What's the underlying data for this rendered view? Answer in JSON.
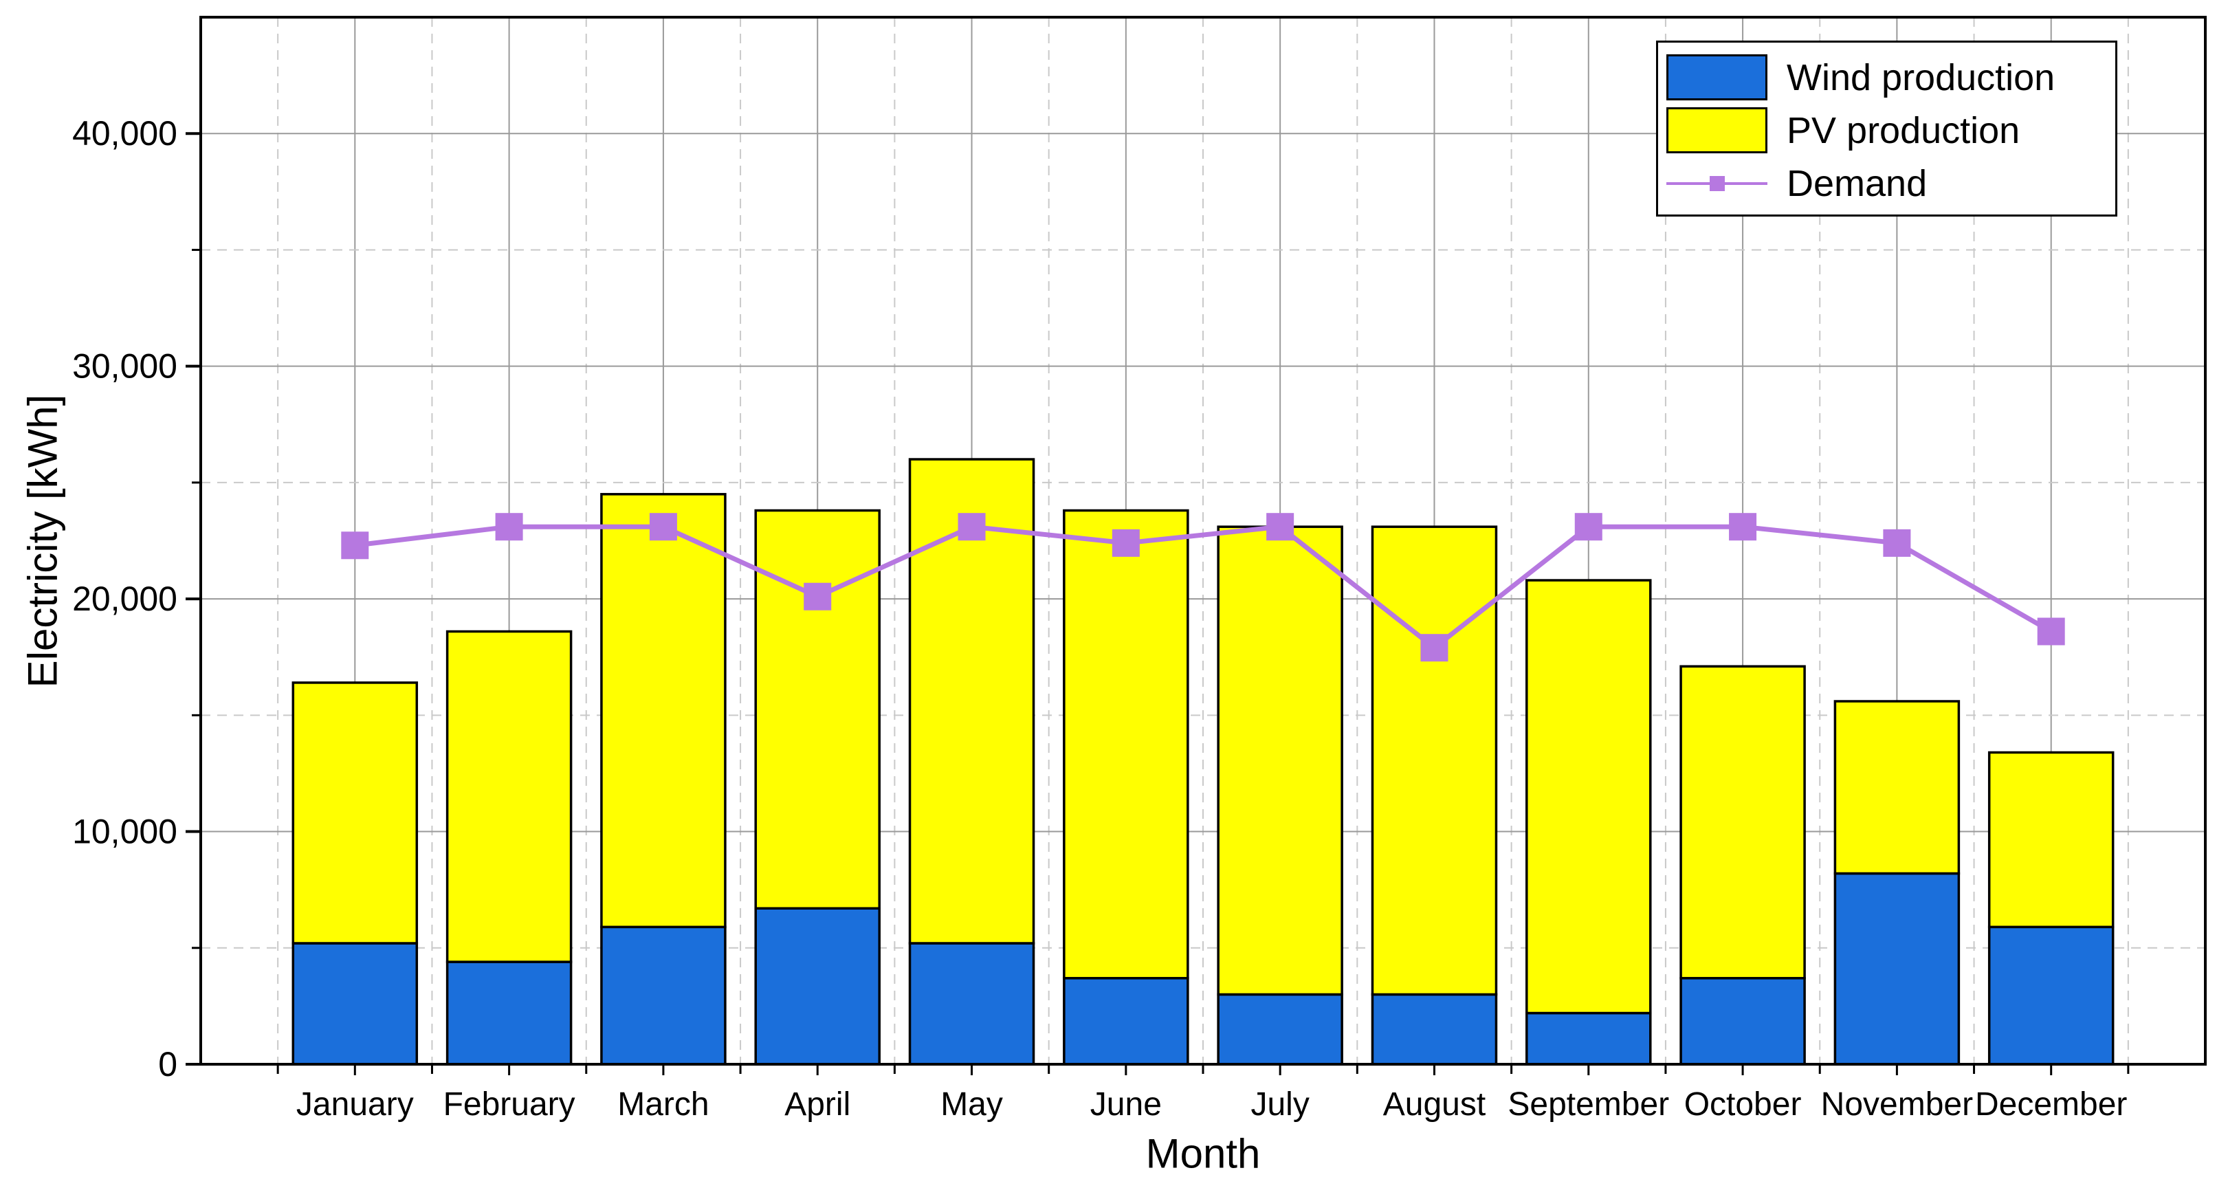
{
  "chart_data": {
    "type": "bar",
    "subtype": "stacked-bars-with-line-overlay",
    "title": "",
    "xlabel": "Month",
    "ylabel": "Electricity [kWh]",
    "categories": [
      "January",
      "February",
      "March",
      "April",
      "May",
      "June",
      "July",
      "August",
      "September",
      "October",
      "November",
      "December"
    ],
    "series": [
      {
        "name": "Wind production",
        "type": "bar",
        "color": "#1B6FDB",
        "values": [
          5200,
          4400,
          5900,
          6700,
          5200,
          3700,
          3000,
          3000,
          2200,
          3700,
          8200,
          5900
        ]
      },
      {
        "name": "PV production",
        "type": "bar",
        "color": "#FFFF00",
        "values": [
          11200,
          14200,
          18600,
          17100,
          20800,
          20100,
          20100,
          20100,
          18600,
          13400,
          7400,
          7500
        ]
      },
      {
        "name": "Demand",
        "type": "line",
        "color": "#B678E0",
        "values": [
          22300,
          23100,
          23100,
          20100,
          23100,
          22400,
          23100,
          17900,
          23100,
          23100,
          22400,
          18600
        ]
      }
    ],
    "stacked_totals": [
      16400,
      18600,
      24500,
      23800,
      26000,
      23800,
      23100,
      23100,
      20800,
      17100,
      15600,
      13400
    ],
    "ylim": [
      0,
      45000
    ],
    "ytick_major_step": 10000,
    "ytick_minor_step": 5000,
    "ytick_labels": [
      "0",
      "10,000",
      "20,000",
      "30,000",
      "40,000"
    ],
    "grid": {
      "major": "solid",
      "minor": "dashed",
      "vertical_solid_at": "month-centers",
      "vertical_dashed_at": "month-boundaries"
    },
    "legend_position": "top-right",
    "bar_edge_color": "#000000"
  }
}
